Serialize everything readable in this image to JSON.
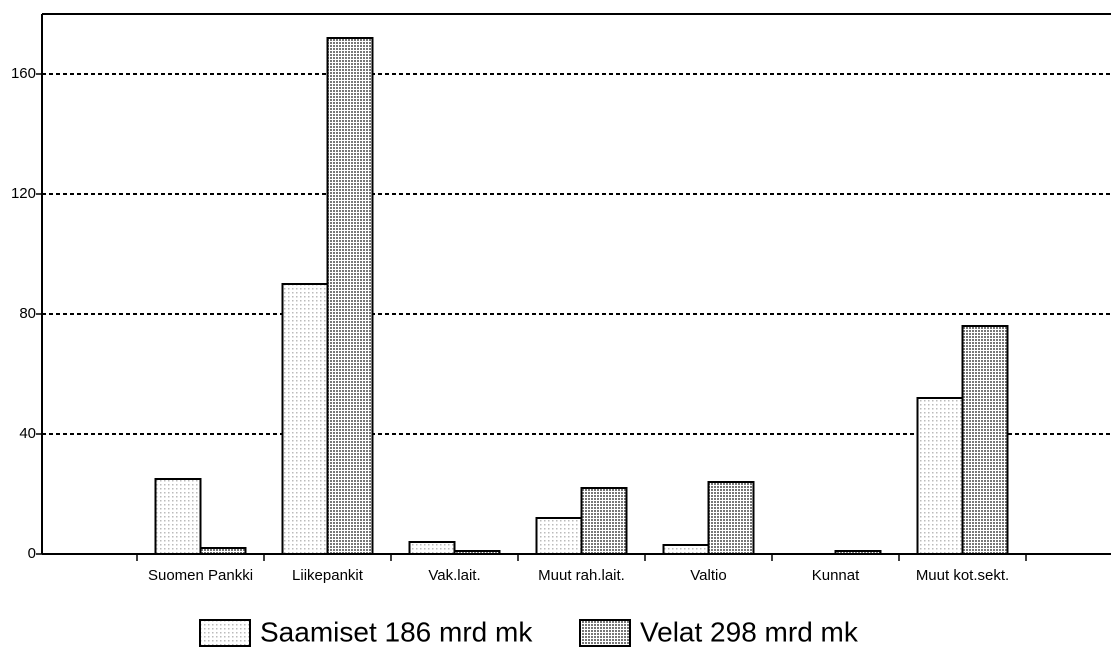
{
  "chart_data": {
    "type": "bar",
    "categories": [
      "Suomen Pankki",
      "Liikepankit",
      "Vak.lait.",
      "Muut rah.lait.",
      "Valtio",
      "Kunnat",
      "Muut kot.sekt."
    ],
    "series": [
      {
        "name": "Saamiset 186 mrd mk",
        "color": "#bbbbbb",
        "values": [
          25,
          90,
          4,
          12,
          3,
          0,
          52
        ]
      },
      {
        "name": "Velat 298 mrd mk",
        "color": "#777777",
        "values": [
          2,
          172,
          1,
          22,
          24,
          1,
          76
        ]
      }
    ],
    "ylim": [
      0,
      180
    ],
    "yticks": [
      0,
      40,
      80,
      120,
      160
    ],
    "grid": true,
    "legend": "bottom"
  }
}
